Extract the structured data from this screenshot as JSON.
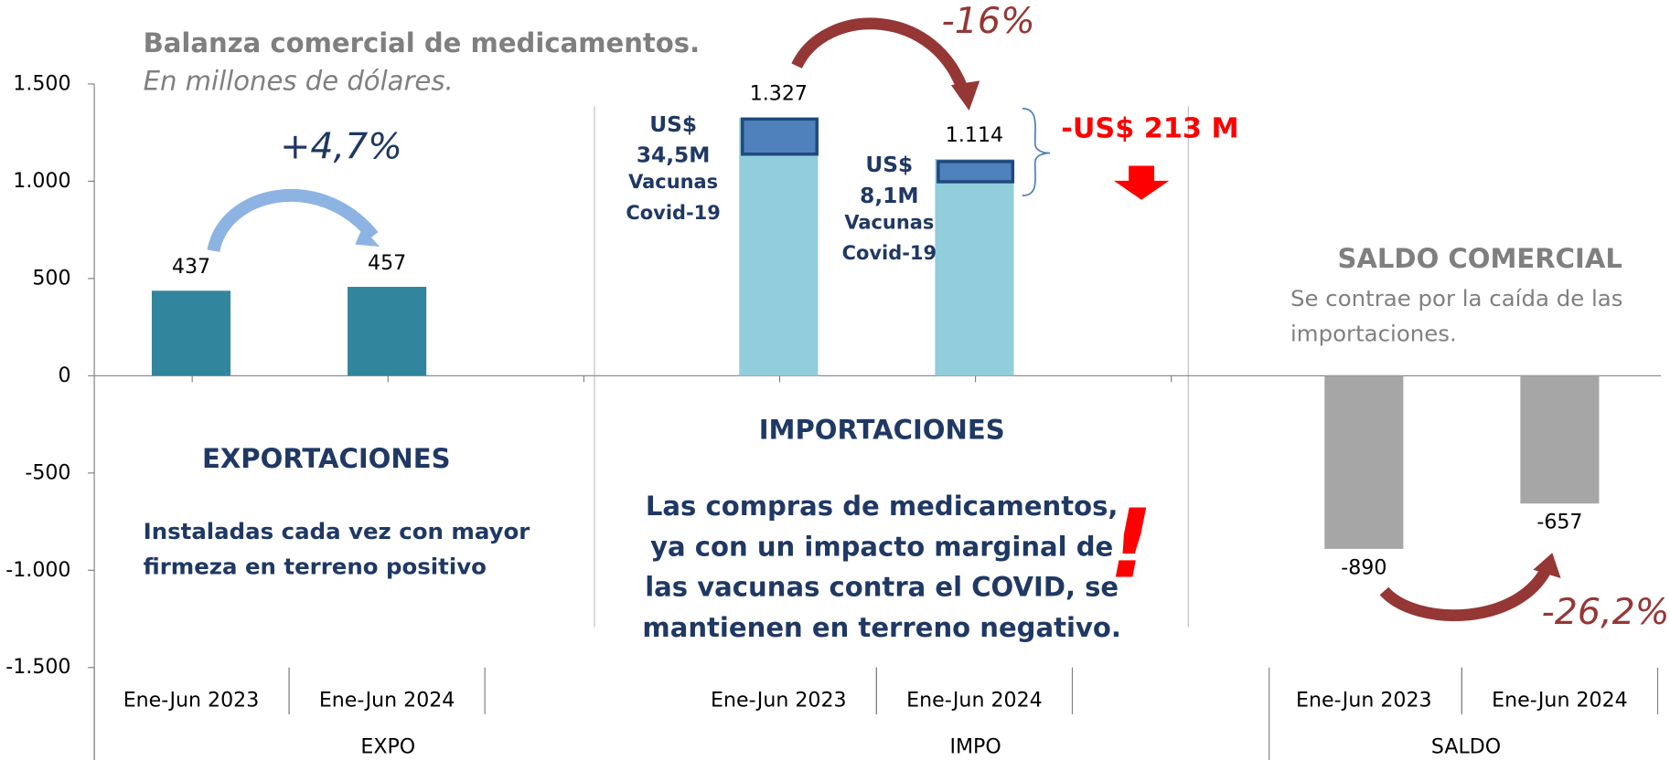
{
  "chart_data": {
    "type": "bar",
    "title": "Balanza comercial de medicamentos.",
    "subtitle": "En millones de dólares.",
    "categories": [
      "Ene-Jun 2023",
      "Ene-Jun 2024"
    ],
    "series": [
      {
        "name": "EXPO",
        "color": "#31859c",
        "values": [
          437,
          457
        ]
      },
      {
        "name": "IMPO",
        "color": "#92cddc",
        "values": [
          1327,
          1114
        ],
        "value_labels": [
          "1.327",
          "1.114"
        ]
      },
      {
        "name": "SALDO",
        "color": "#a6a6a6",
        "values": [
          -890,
          -657
        ],
        "value_labels": [
          "-890",
          "-657"
        ]
      }
    ],
    "ylim": [
      -1500,
      1500
    ],
    "yticks": [
      {
        "value": -1500,
        "label": "-1.500"
      },
      {
        "value": -1000,
        "label": "-1.000"
      },
      -500,
      0,
      500,
      {
        "value": 1000,
        "label": "1.000"
      },
      {
        "value": 1500,
        "label": "1.500"
      }
    ],
    "annotations": {
      "expo_change": "+4,7%",
      "impo_change": "-16%",
      "impo_diff": "-US$ 213 M",
      "saldo_change": "-26,2%",
      "vaccine_2023": [
        "US$",
        "34,5M",
        "Vacunas",
        "Covid-19"
      ],
      "vaccine_2024": [
        "US$",
        "8,1M",
        "Vacunas",
        "Covid-19"
      ],
      "expo_heading": "EXPORTACIONES",
      "expo_text": [
        "Instaladas cada vez con mayor",
        "firmeza en terreno positivo"
      ],
      "impo_heading": "IMPORTACIONES",
      "impo_text": [
        "Las compras de medicamentos,",
        "ya con un impacto marginal de",
        "las vacunas contra el COVID, se",
        "mantienen en terreno negativo."
      ],
      "impo_mark": "!",
      "saldo_heading": "SALDO COMERCIAL",
      "saldo_text": [
        "Se contrae por la caída de las",
        "importaciones."
      ]
    }
  }
}
